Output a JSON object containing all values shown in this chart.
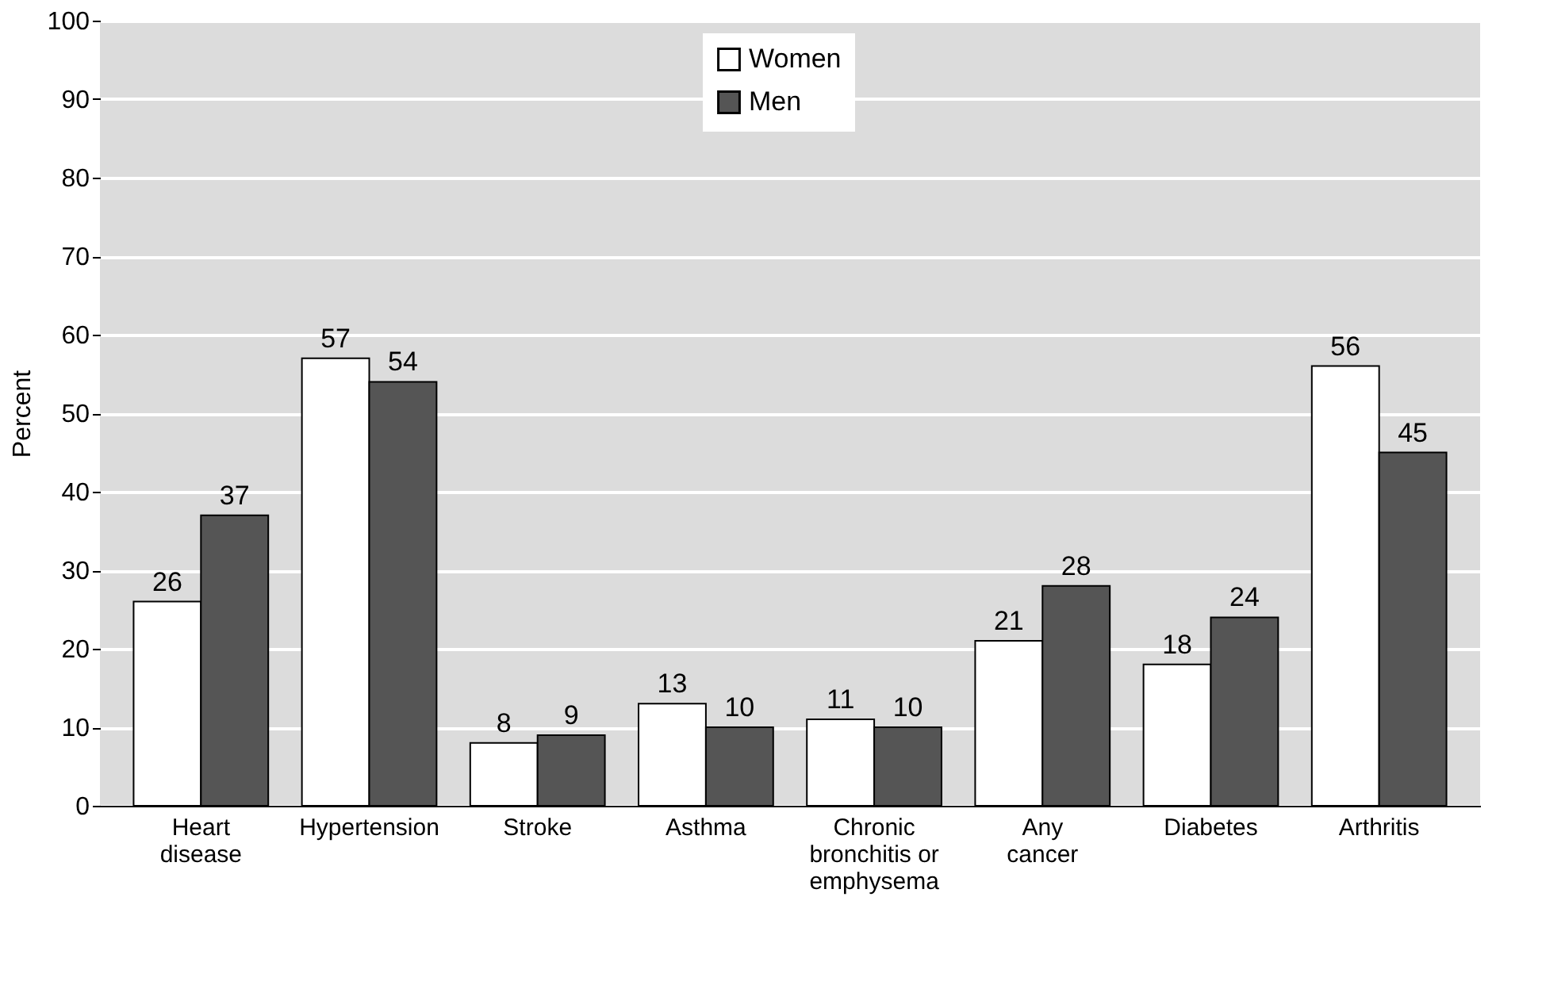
{
  "chart_data": {
    "type": "bar",
    "ylabel": "Percent",
    "categories": [
      "Heart disease",
      "Hypertension",
      "Stroke",
      "Asthma",
      "Chronic bronchitis or emphysema",
      "Any cancer",
      "Diabetes",
      "Arthritis"
    ],
    "series": [
      {
        "name": "Women",
        "color": "#ffffff",
        "values": [
          26,
          57,
          8,
          13,
          11,
          21,
          18,
          56
        ]
      },
      {
        "name": "Men",
        "color": "#555555",
        "values": [
          37,
          54,
          9,
          10,
          10,
          28,
          24,
          45
        ]
      }
    ],
    "ylim": [
      0,
      100
    ],
    "yticks": [
      0,
      10,
      20,
      30,
      40,
      50,
      60,
      70,
      80,
      90,
      100
    ],
    "grid": "y",
    "legend": "top",
    "data_labels": true
  }
}
